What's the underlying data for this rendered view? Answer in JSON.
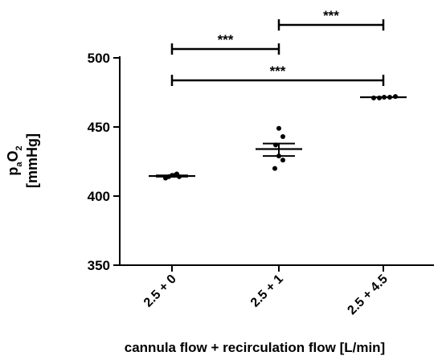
{
  "chart_data": {
    "type": "scatter",
    "title": "",
    "xlabel": "cannula flow + recirculation flow [L/min]",
    "ylabel": {
      "symbol_main": "p",
      "symbol_sub1": "a",
      "symbol_mid": "O",
      "symbol_sub2": "2",
      "unit": "[mmHg]"
    },
    "ylim": [
      350,
      500
    ],
    "yticks": [
      350,
      400,
      450,
      500
    ],
    "ytick_labels": [
      "350",
      "400",
      "450",
      "500"
    ],
    "categories": [
      "2.5 + 0",
      "2.5 + 1",
      "2.5 + 4.5"
    ],
    "groups": [
      {
        "category": "2.5 + 0",
        "points": [
          413,
          414,
          415,
          415,
          416,
          414
        ],
        "mean": 414.5,
        "sem_low": 414,
        "sem_high": 415
      },
      {
        "category": "2.5 + 1",
        "points": [
          449,
          443,
          437,
          429,
          426,
          420
        ],
        "mean": 434,
        "sem_low": 429,
        "sem_high": 438
      },
      {
        "category": "2.5 + 4.5",
        "points": [
          471,
          471,
          471.5,
          471.5,
          472
        ],
        "mean": 471.5,
        "sem_low": 471.5,
        "sem_high": 471.5
      }
    ],
    "significance": [
      {
        "from": 0,
        "to": 1,
        "label": "***"
      },
      {
        "from": 1,
        "to": 2,
        "label": "***"
      },
      {
        "from": 0,
        "to": 2,
        "label": "***"
      }
    ],
    "grid": false,
    "legend": "none"
  }
}
